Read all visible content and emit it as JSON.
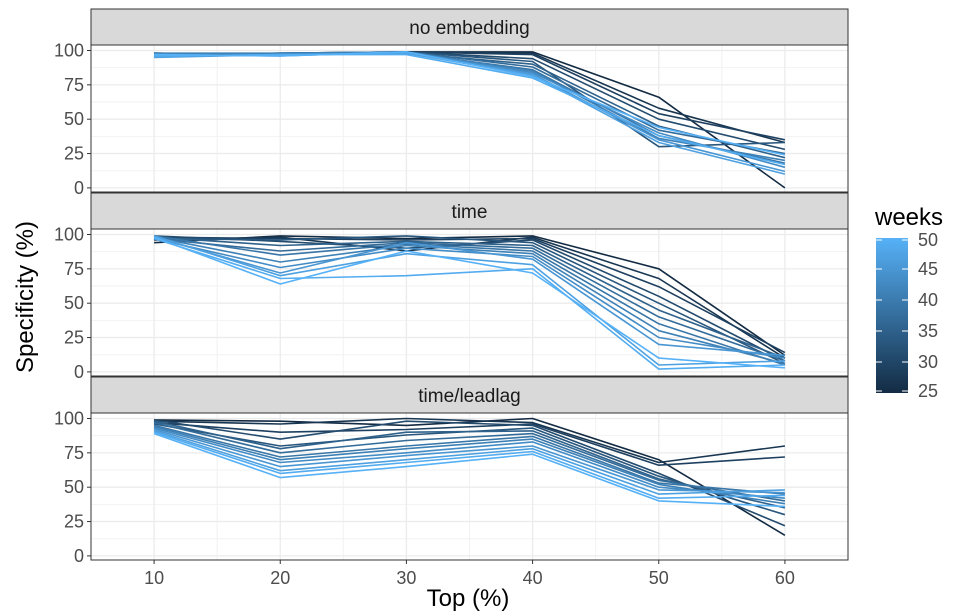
{
  "chart_data": {
    "type": "line",
    "xlabel": "Top (%)",
    "ylabel": "Specificity (%)",
    "x": [
      10,
      20,
      30,
      40,
      50,
      60
    ],
    "xticks": [
      10,
      20,
      30,
      40,
      50,
      60
    ],
    "xlim": [
      5,
      65
    ],
    "yticks": [
      0,
      25,
      50,
      75,
      100
    ],
    "ylim": [
      -3,
      104
    ],
    "grid": true,
    "legend": {
      "title": "weeks",
      "position": "right",
      "ticks": [
        25,
        30,
        35,
        40,
        45,
        50
      ],
      "range": [
        25,
        50
      ],
      "color_low": "#132b43",
      "color_high": "#56b1f7"
    },
    "panels": [
      {
        "label": "no embedding",
        "series": [
          {
            "weeks": 25,
            "values": [
              98,
              97,
              99,
              99,
              66,
              0
            ]
          },
          {
            "weeks": 27,
            "values": [
              97,
              98,
              99,
              98,
              58,
              33
            ]
          },
          {
            "weeks": 29,
            "values": [
              98,
              97,
              99,
              97,
              54,
              35
            ]
          },
          {
            "weeks": 31,
            "values": [
              96,
              97,
              99,
              94,
              50,
              28
            ]
          },
          {
            "weeks": 33,
            "values": [
              97,
              98,
              99,
              92,
              30,
              33
            ]
          },
          {
            "weeks": 35,
            "values": [
              98,
              97,
              98,
              90,
              45,
              22
            ]
          },
          {
            "weeks": 37,
            "values": [
              96,
              98,
              99,
              88,
              42,
              25
            ]
          },
          {
            "weeks": 39,
            "values": [
              97,
              97,
              98,
              86,
              38,
              18
            ]
          },
          {
            "weeks": 41,
            "values": [
              98,
              98,
              99,
              85,
              36,
              20
            ]
          },
          {
            "weeks": 43,
            "values": [
              96,
              97,
              98,
              84,
              40,
              15
            ]
          },
          {
            "weeks": 45,
            "values": [
              97,
              96,
              99,
              83,
              35,
              12
            ]
          },
          {
            "weeks": 47,
            "values": [
              95,
              97,
              98,
              82,
              33,
              10
            ]
          },
          {
            "weeks": 49,
            "values": [
              96,
              97,
              97,
              80,
              38,
              17
            ]
          },
          {
            "weeks": 50,
            "values": [
              97,
              96,
              99,
              81,
              44,
              24
            ]
          }
        ]
      },
      {
        "label": "time",
        "series": [
          {
            "weeks": 25,
            "values": [
              94,
              99,
              97,
              99,
              75,
              12
            ]
          },
          {
            "weeks": 27,
            "values": [
              96,
              98,
              88,
              98,
              68,
              10
            ]
          },
          {
            "weeks": 29,
            "values": [
              98,
              97,
              96,
              97,
              62,
              14
            ]
          },
          {
            "weeks": 31,
            "values": [
              99,
              95,
              90,
              96,
              55,
              8
            ]
          },
          {
            "weeks": 33,
            "values": [
              97,
              96,
              99,
              94,
              50,
              6
            ]
          },
          {
            "weeks": 35,
            "values": [
              98,
              92,
              95,
              92,
              45,
              10
            ]
          },
          {
            "weeks": 37,
            "values": [
              97,
              88,
              94,
              90,
              40,
              8
            ]
          },
          {
            "weeks": 39,
            "values": [
              99,
              85,
              93,
              88,
              35,
              5
            ]
          },
          {
            "weeks": 41,
            "values": [
              98,
              80,
              92,
              86,
              30,
              6
            ]
          },
          {
            "weeks": 43,
            "values": [
              97,
              76,
              90,
              84,
              25,
              10
            ]
          },
          {
            "weeks": 45,
            "values": [
              98,
              72,
              94,
              82,
              20,
              12
            ]
          },
          {
            "weeks": 47,
            "values": [
              99,
              70,
              86,
              78,
              5,
              8
            ]
          },
          {
            "weeks": 49,
            "values": [
              97,
              68,
              70,
              75,
              2,
              5
            ]
          },
          {
            "weeks": 50,
            "values": [
              98,
              64,
              88,
              72,
              10,
              3
            ]
          }
        ]
      },
      {
        "label": "time/leadlag",
        "series": [
          {
            "weeks": 25,
            "values": [
              99,
              98,
              95,
              100,
              70,
              15
            ]
          },
          {
            "weeks": 27,
            "values": [
              98,
              96,
              100,
              97,
              68,
              80
            ]
          },
          {
            "weeks": 29,
            "values": [
              97,
              90,
              92,
              96,
              66,
              72
            ]
          },
          {
            "weeks": 31,
            "values": [
              99,
              85,
              98,
              95,
              60,
              22
            ]
          },
          {
            "weeks": 33,
            "values": [
              96,
              80,
              88,
              93,
              58,
              30
            ]
          },
          {
            "weeks": 35,
            "values": [
              98,
              78,
              90,
              91,
              56,
              35
            ]
          },
          {
            "weeks": 37,
            "values": [
              97,
              75,
              84,
              89,
              55,
              40
            ]
          },
          {
            "weeks": 39,
            "values": [
              95,
              72,
              80,
              87,
              53,
              45
            ]
          },
          {
            "weeks": 41,
            "values": [
              94,
              70,
              78,
              85,
              52,
              38
            ]
          },
          {
            "weeks": 43,
            "values": [
              93,
              68,
              75,
              83,
              50,
              42
            ]
          },
          {
            "weeks": 45,
            "values": [
              92,
              65,
              73,
              80,
              48,
              46
            ]
          },
          {
            "weeks": 47,
            "values": [
              91,
              62,
              70,
              78,
              45,
              48
            ]
          },
          {
            "weeks": 49,
            "values": [
              90,
              60,
              68,
              76,
              42,
              44
            ]
          },
          {
            "weeks": 50,
            "values": [
              89,
              57,
              65,
              74,
              40,
              36
            ]
          }
        ]
      }
    ]
  }
}
